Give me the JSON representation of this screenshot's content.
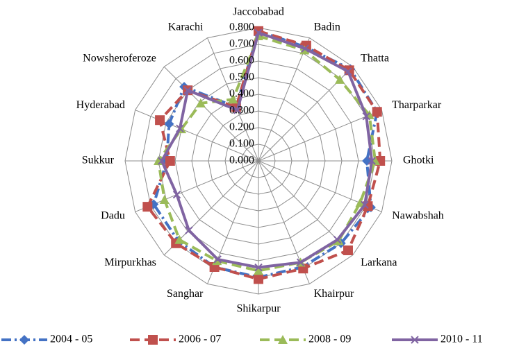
{
  "chart_data": {
    "type": "radar",
    "categories": [
      "Jaccobabad",
      "Badin",
      "Thatta",
      "Tharparkar",
      "Ghotki",
      "Nawabshah",
      "Larkana",
      "Khairpur",
      "Shikarpur",
      "Sanghar",
      "Mirpurkhas",
      "Dadu",
      "Sukkur",
      "Hyderabad",
      "Nowsheroferoze",
      "Karachi"
    ],
    "series": [
      {
        "name": "2004 - 05",
        "color": "#4472c4",
        "marker": "diamond",
        "dash": "long-dash-dot",
        "values": [
          0.78,
          0.74,
          0.78,
          0.77,
          0.65,
          0.73,
          0.7,
          0.69,
          0.7,
          0.69,
          0.68,
          0.68,
          0.55,
          0.58,
          0.63,
          0.35
        ]
      },
      {
        "name": "2006 - 07",
        "color": "#c0504d",
        "marker": "square",
        "dash": "dash",
        "values": [
          0.78,
          0.75,
          0.77,
          0.77,
          0.73,
          0.71,
          0.76,
          0.7,
          0.71,
          0.69,
          0.7,
          0.72,
          0.53,
          0.64,
          0.6,
          0.35
        ]
      },
      {
        "name": "2008 - 09",
        "color": "#9bbb59",
        "marker": "triangle",
        "dash": "dash",
        "values": [
          0.75,
          0.72,
          0.69,
          0.72,
          0.7,
          0.66,
          0.68,
          0.66,
          0.66,
          0.65,
          0.67,
          0.61,
          0.6,
          0.5,
          0.49,
          0.4
        ]
      },
      {
        "name": "2010 - 11",
        "color": "#8064a2",
        "marker": "x",
        "dash": "solid",
        "values": [
          0.77,
          0.73,
          0.76,
          0.7,
          0.68,
          0.69,
          0.67,
          0.66,
          0.64,
          0.64,
          0.59,
          0.53,
          0.58,
          0.51,
          0.6,
          0.33
        ]
      }
    ],
    "ylim": [
      0,
      0.8
    ],
    "yticks": [
      {
        "value": 0,
        "label": "0.000"
      },
      {
        "value": 0.1,
        "label": "0.100"
      },
      {
        "value": 0.2,
        "label": "0.200"
      },
      {
        "value": 0.3,
        "label": "0.300"
      },
      {
        "value": 0.4,
        "label": "0.400"
      },
      {
        "value": 0.5,
        "label": "0.500"
      },
      {
        "value": 0.6,
        "label": "0.600"
      },
      {
        "value": 0.7,
        "label": "0.700"
      },
      {
        "value": 0.8,
        "label": "0.800"
      }
    ],
    "grid": true,
    "legend": "bottom"
  }
}
